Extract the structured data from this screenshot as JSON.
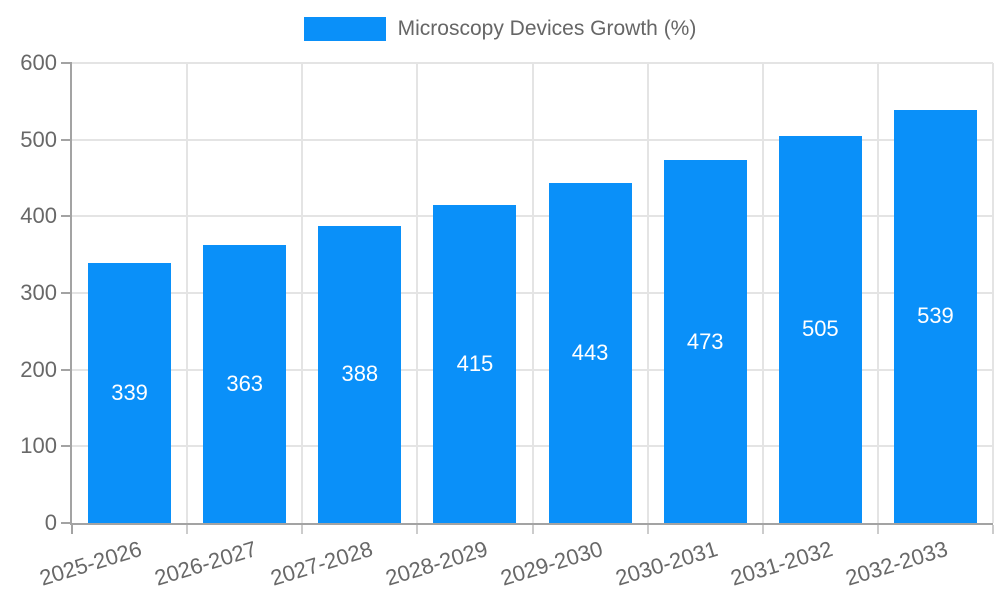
{
  "chart_data": {
    "type": "bar",
    "title": "Microscopy Devices Growth (%)",
    "legend": {
      "label": "Microscopy Devices Growth (%)",
      "position": "top-center"
    },
    "categories": [
      "2025-2026",
      "2026-2027",
      "2027-2028",
      "2028-2029",
      "2029-2030",
      "2030-2031",
      "2031-2032",
      "2032-2033"
    ],
    "values": [
      339,
      363,
      388,
      415,
      443,
      473,
      505,
      539
    ],
    "xlabel": "",
    "ylabel": "",
    "ylim": [
      0,
      600
    ],
    "ytick_step": 100,
    "ytick_labels": [
      "0",
      "100",
      "200",
      "300",
      "400",
      "500",
      "600"
    ],
    "grid": true,
    "value_labels_inside_bars": true,
    "x_label_rotation_deg": -17,
    "colors": {
      "bar": "#0a90f9",
      "value_label": "#ffffff",
      "axis": "#a3a3a3",
      "grid": "#e4e4e4",
      "tick_text": "#686868",
      "legend_text": "#666666",
      "background": "#ffffff"
    }
  }
}
